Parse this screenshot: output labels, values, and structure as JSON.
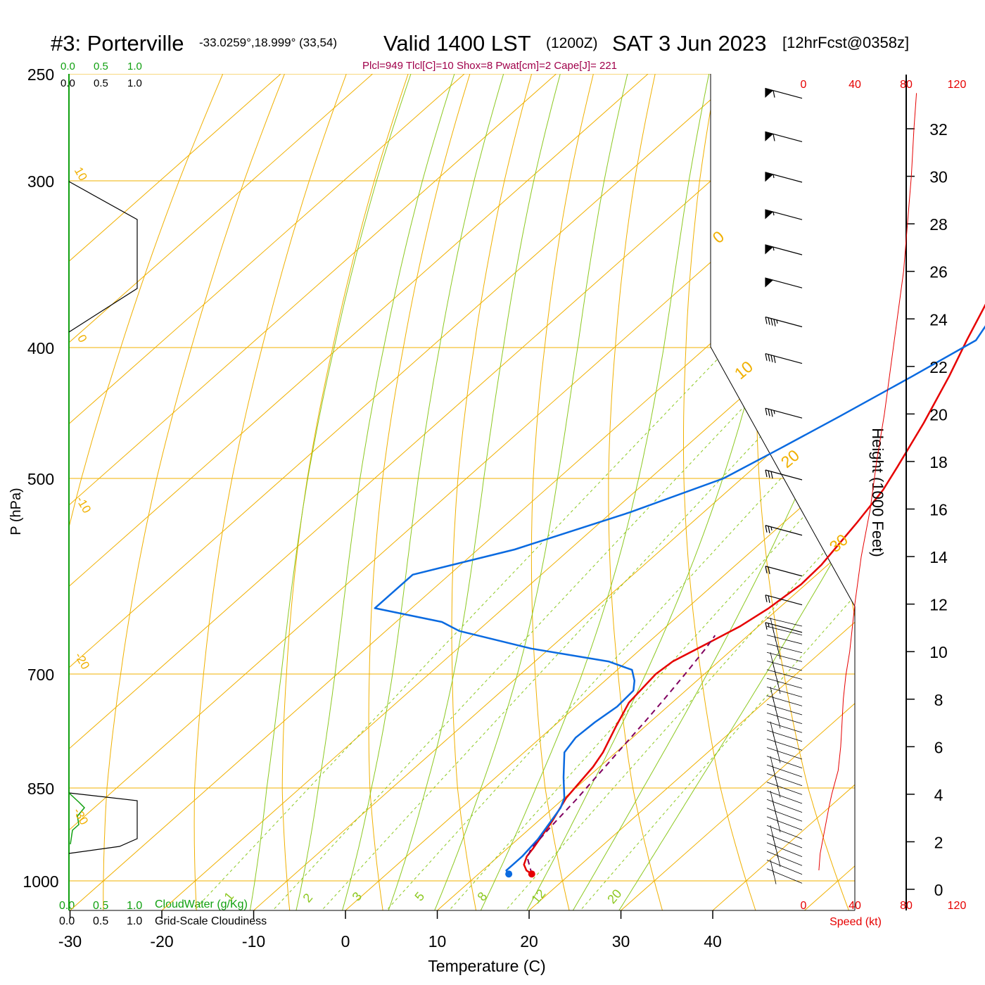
{
  "header": {
    "station": "#3: Porterville",
    "coords": "-33.0259°,18.999° (33,54)",
    "valid": "Valid 1400 LST",
    "zulu": "(1200Z)",
    "date": "SAT 3 Jun 2023",
    "forecast": "[12hrFcst@0358z]"
  },
  "indices": "Plcl=949 Tlcl[C]=10 Shox=8 Pwat[cm]=2 Cape[J]= 221",
  "cloud_scales": {
    "cloudwater_ticks": [
      "0.0",
      "0.5",
      "1.0"
    ],
    "cloudiness_ticks": [
      "0.0",
      "0.5",
      "1.0"
    ],
    "cloudwater_label": "CloudWater (g/Kg)",
    "cloudiness_label": "Grid-Scale Cloudiness"
  },
  "axes": {
    "x_label": "Temperature (C)",
    "y_label": "P (hPa)",
    "height_label": "Height (1000 Feet)",
    "speed_label": "Speed (kt)",
    "x_ticks": [
      "-30",
      "-20",
      "-10",
      "0",
      "10",
      "20",
      "30",
      "40"
    ],
    "p_ticks": [
      "250",
      "300",
      "400",
      "500",
      "700",
      "850",
      "1000"
    ],
    "height_ticks": [
      "0",
      "2",
      "4",
      "6",
      "8",
      "10",
      "12",
      "14",
      "16",
      "18",
      "20",
      "22",
      "24",
      "26",
      "28",
      "30",
      "32"
    ],
    "speed_ticks": [
      "0",
      "40",
      "80",
      "120"
    ]
  },
  "isotherm_labels": [
    "10",
    "0",
    "-10",
    "-20",
    "-30"
  ],
  "dry_adiabat_labels": [
    "0",
    "10",
    "20",
    "30"
  ],
  "mixing_ratio_labels": [
    "1",
    "2",
    "3",
    "5",
    "8",
    "12",
    "20"
  ],
  "colors": {
    "temperature": "#e60000",
    "dewpoint": "#0a6ae0",
    "parcel": "#800060",
    "isotherm": "#f0b000",
    "moist_adiabat": "#8cc820",
    "mixing_ratio": "#8cc820",
    "cloudwater": "#10a010",
    "indices_text": "#a0004a",
    "speed": "#e60000"
  },
  "chart_data": {
    "type": "line",
    "x_unit": "°C",
    "y_unit": "hPa",
    "xlim": [
      -34,
      46
    ],
    "ylim": [
      1050,
      250
    ],
    "series": [
      {
        "name": "",
        "color": "#e60000",
        "points": [
          [
            15.8,
            988
          ],
          [
            14.8,
            982
          ],
          [
            13.8,
            972
          ],
          [
            13.1,
            958
          ],
          [
            12.8,
            945
          ],
          [
            11.5,
            900
          ],
          [
            10.2,
            865
          ],
          [
            9.3,
            820
          ],
          [
            8.6,
            800
          ],
          [
            6.8,
            765
          ],
          [
            5.3,
            735
          ],
          [
            4.7,
            700
          ],
          [
            5.0,
            685
          ],
          [
            6.5,
            665
          ],
          [
            8.0,
            645
          ],
          [
            8.9,
            625
          ],
          [
            9.5,
            600
          ],
          [
            9.3,
            580
          ],
          [
            8.0,
            540
          ],
          [
            6.8,
            510
          ],
          [
            5.5,
            490
          ],
          [
            3.0,
            455
          ],
          [
            0.0,
            420
          ],
          [
            -2.5,
            395
          ],
          [
            -5.0,
            370
          ],
          [
            -7.0,
            350
          ],
          [
            -9.0,
            330
          ],
          [
            -9.8,
            320
          ],
          [
            -10.5,
            305
          ],
          [
            -10.6,
            295
          ],
          [
            -10.6,
            280
          ],
          [
            -10.4,
            270
          ],
          [
            -9.6,
            262
          ]
        ]
      },
      {
        "name": "",
        "color": "#0a6ae0",
        "points": [
          [
            13.3,
            988
          ],
          [
            12.6,
            982
          ],
          [
            12.6,
            972
          ],
          [
            12.6,
            958
          ],
          [
            12.2,
            930
          ],
          [
            10.8,
            880
          ],
          [
            10.0,
            865
          ],
          [
            7.4,
            835
          ],
          [
            4.4,
            800
          ],
          [
            3.8,
            780
          ],
          [
            4.0,
            760
          ],
          [
            4.5,
            740
          ],
          [
            4.3,
            720
          ],
          [
            3.2,
            708
          ],
          [
            1.6,
            695
          ],
          [
            -2.0,
            685
          ],
          [
            -12.0,
            670
          ],
          [
            -22.0,
            650
          ],
          [
            -25.0,
            640
          ],
          [
            -34.0,
            625
          ],
          [
            -34.0,
            590
          ],
          [
            -26.0,
            565
          ],
          [
            -18.0,
            530
          ],
          [
            -12.0,
            500
          ],
          [
            -9.5,
            475
          ],
          [
            -7.0,
            450
          ],
          [
            -4.0,
            420
          ],
          [
            -1.5,
            395
          ],
          [
            -3.0,
            375
          ],
          [
            -5.8,
            350
          ],
          [
            -8.5,
            320
          ],
          [
            -11.5,
            300
          ],
          [
            -17.0,
            277
          ],
          [
            -19.0,
            260
          ]
        ]
      },
      {
        "name": "",
        "color": "#800060",
        "points": [
          [
            15.8,
            988
          ],
          [
            13.3,
            960
          ],
          [
            12.6,
            945
          ],
          [
            12.0,
            905
          ],
          [
            11.5,
            868
          ],
          [
            10.6,
            820
          ],
          [
            10.0,
            790
          ],
          [
            9.4,
            760
          ],
          [
            8.7,
            730
          ],
          [
            7.9,
            700
          ],
          [
            7.0,
            670
          ],
          [
            6.4,
            655
          ]
        ]
      }
    ],
    "height_profile": {
      "ylabel": "Height (1000 Feet)",
      "height_kft": [
        0.8,
        1.5,
        3.5,
        4.0,
        5.0,
        6.0,
        7.0,
        8.0,
        9.0,
        10.0,
        12.0,
        14.0,
        16.0,
        18.0,
        20.0,
        22.0,
        24.0,
        26.0,
        28.0,
        30.0,
        32.0,
        33.5
      ],
      "speed_kt": [
        12,
        13,
        20,
        22,
        27,
        29,
        30,
        31,
        33,
        36,
        40,
        45,
        52,
        57,
        63,
        68,
        73,
        78,
        81,
        84,
        86,
        88
      ]
    },
    "wind_barbs": {
      "pressure_hpa": [
        260,
        280,
        300,
        320,
        340,
        360,
        385,
        410,
        450,
        500,
        550,
        590,
        620,
        650
      ],
      "speed_kt": [
        60,
        60,
        55,
        55,
        55,
        50,
        45,
        40,
        35,
        30,
        25,
        20,
        20,
        15
      ],
      "direction_deg": [
        270,
        270,
        270,
        270,
        270,
        270,
        270,
        270,
        270,
        270,
        270,
        270,
        270,
        270
      ]
    }
  }
}
